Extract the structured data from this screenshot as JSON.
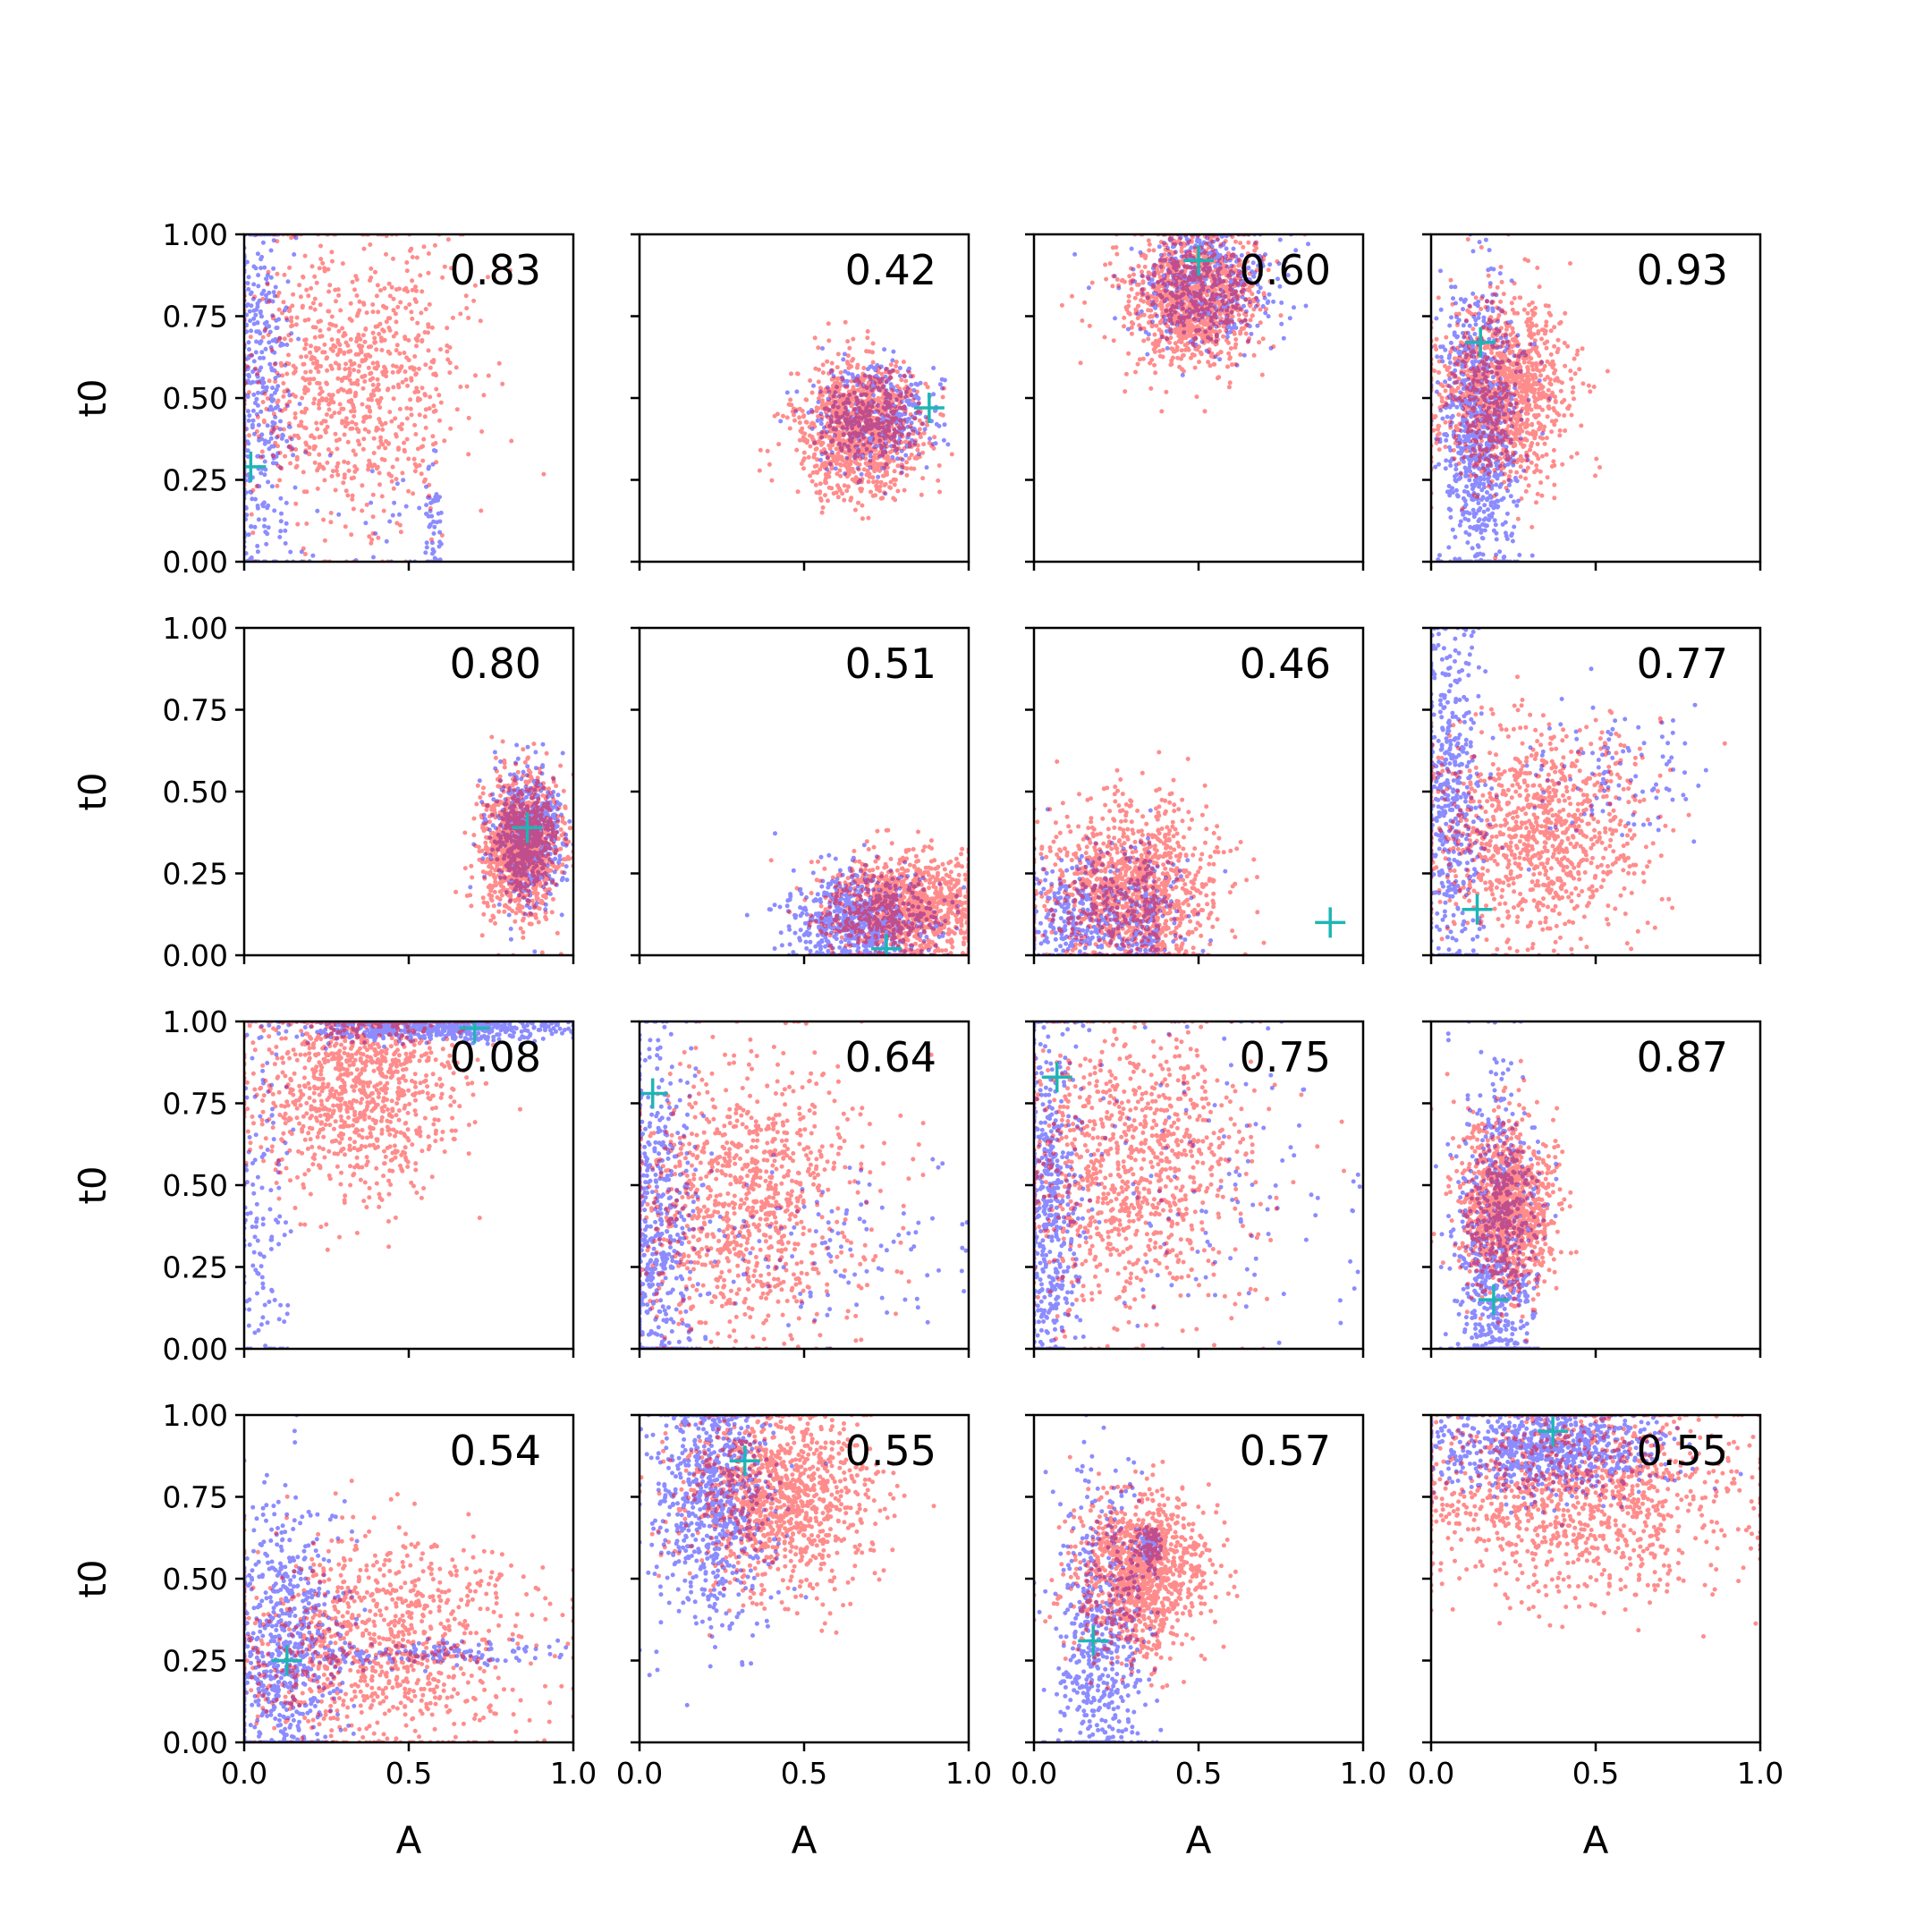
{
  "chart_data": {
    "type": "scatter",
    "layout": "4x4 grid of scatter panels with shared axes",
    "xlabel": "A",
    "ylabel": "t0",
    "xlim": [
      0,
      1
    ],
    "ylim": [
      0,
      1
    ],
    "x_ticks": [
      "0.0",
      "0.5",
      "1.0"
    ],
    "y_ticks": [
      "0.00",
      "0.25",
      "0.50",
      "0.75",
      "1.00"
    ],
    "series_colors": {
      "blue": "#0000ff",
      "red": "#ff0000",
      "marker": "#1fb5b5"
    },
    "panels": [
      {
        "value": "0.83",
        "marker": [
          0.02,
          0.29
        ],
        "blue": {
          "cx": 0.04,
          "cy": 0.5,
          "sx": 0.05,
          "sy": 0.32,
          "n": 500,
          "tail": [
            0.55,
            0.1,
            0.45,
            0.1,
            0.6
          ]
        },
        "red": {
          "cx": 0.32,
          "cy": 0.55,
          "sx": 0.17,
          "sy": 0.22,
          "n": 900
        }
      },
      {
        "value": "0.42",
        "marker": [
          0.88,
          0.47
        ],
        "blue": {
          "cx": 0.72,
          "cy": 0.44,
          "sx": 0.09,
          "sy": 0.08,
          "n": 500
        },
        "red": {
          "cx": 0.67,
          "cy": 0.41,
          "sx": 0.09,
          "sy": 0.1,
          "n": 1100
        }
      },
      {
        "value": "0.60",
        "marker": [
          0.5,
          0.92
        ],
        "blue": {
          "cx": 0.52,
          "cy": 0.84,
          "sx": 0.1,
          "sy": 0.09,
          "n": 600
        },
        "red": {
          "cx": 0.48,
          "cy": 0.8,
          "sx": 0.1,
          "sy": 0.1,
          "n": 1100
        }
      },
      {
        "value": "0.93",
        "marker": [
          0.15,
          0.67
        ],
        "blue": {
          "cx": 0.15,
          "cy": 0.4,
          "sx": 0.06,
          "sy": 0.23,
          "n": 900
        },
        "red": {
          "cx": 0.22,
          "cy": 0.52,
          "sx": 0.1,
          "sy": 0.14,
          "n": 1100
        }
      },
      {
        "value": "0.80",
        "marker": [
          0.86,
          0.39
        ],
        "blue": {
          "cx": 0.86,
          "cy": 0.36,
          "sx": 0.05,
          "sy": 0.1,
          "n": 700
        },
        "red": {
          "cx": 0.84,
          "cy": 0.34,
          "sx": 0.06,
          "sy": 0.1,
          "n": 1100
        }
      },
      {
        "value": "0.51",
        "marker": [
          0.75,
          0.02
        ],
        "blue": {
          "cx": 0.68,
          "cy": 0.1,
          "sx": 0.11,
          "sy": 0.08,
          "n": 800
        },
        "red": {
          "cx": 0.82,
          "cy": 0.15,
          "sx": 0.13,
          "sy": 0.08,
          "n": 1100
        }
      },
      {
        "value": "0.46",
        "marker": [
          0.9,
          0.1
        ],
        "blue": {
          "cx": 0.2,
          "cy": 0.12,
          "sx": 0.12,
          "sy": 0.1,
          "n": 600,
          "tail": [
            0.35,
            0.1,
            0.02,
            0.1,
            1.0
          ]
        },
        "red": {
          "cx": 0.3,
          "cy": 0.2,
          "sx": 0.13,
          "sy": 0.13,
          "n": 1100
        }
      },
      {
        "value": "0.77",
        "marker": [
          0.14,
          0.14
        ],
        "blue": {
          "cx": 0.06,
          "cy": 0.45,
          "sx": 0.05,
          "sy": 0.28,
          "n": 600,
          "tail": [
            0.55,
            0.55,
            0.15,
            0.1,
            1.0
          ]
        },
        "red": {
          "cx": 0.33,
          "cy": 0.38,
          "sx": 0.17,
          "sy": 0.16,
          "n": 1000
        }
      },
      {
        "value": "0.08",
        "marker": [
          0.7,
          0.98
        ],
        "blue": {
          "cx": 0.55,
          "cy": 0.98,
          "sx": 0.2,
          "sy": 0.02,
          "n": 700,
          "tail": [
            0.05,
            0.4,
            0.05,
            0.3,
            0.15
          ]
        },
        "red": {
          "cx": 0.35,
          "cy": 0.82,
          "sx": 0.16,
          "sy": 0.17,
          "n": 1100
        }
      },
      {
        "value": "0.64",
        "marker": [
          0.04,
          0.78
        ],
        "blue": {
          "cx": 0.05,
          "cy": 0.35,
          "sx": 0.06,
          "sy": 0.3,
          "n": 700,
          "tail": [
            0.55,
            0.3,
            0.25,
            0.15,
            1.0
          ]
        },
        "red": {
          "cx": 0.32,
          "cy": 0.45,
          "sx": 0.18,
          "sy": 0.2,
          "n": 1000
        }
      },
      {
        "value": "0.75",
        "marker": [
          0.07,
          0.83
        ],
        "blue": {
          "cx": 0.04,
          "cy": 0.45,
          "sx": 0.05,
          "sy": 0.3,
          "n": 700,
          "tail": [
            0.55,
            0.5,
            0.25,
            0.25,
            1.0
          ]
        },
        "red": {
          "cx": 0.3,
          "cy": 0.55,
          "sx": 0.18,
          "sy": 0.22,
          "n": 1000
        }
      },
      {
        "value": "0.87",
        "marker": [
          0.19,
          0.15
        ],
        "blue": {
          "cx": 0.2,
          "cy": 0.3,
          "sx": 0.06,
          "sy": 0.25,
          "n": 800
        },
        "red": {
          "cx": 0.23,
          "cy": 0.43,
          "sx": 0.07,
          "sy": 0.13,
          "n": 1100
        }
      },
      {
        "value": "0.54",
        "marker": [
          0.13,
          0.25
        ],
        "blue": {
          "cx": 0.12,
          "cy": 0.28,
          "sx": 0.09,
          "sy": 0.22,
          "n": 900,
          "tail": [
            0.55,
            0.27,
            0.2,
            0.02,
            1.0
          ]
        },
        "red": {
          "cx": 0.4,
          "cy": 0.3,
          "sx": 0.22,
          "sy": 0.17,
          "n": 1000
        }
      },
      {
        "value": "0.55",
        "marker": [
          0.32,
          0.86
        ],
        "blue": {
          "cx": 0.22,
          "cy": 0.76,
          "sx": 0.09,
          "sy": 0.2,
          "n": 800
        },
        "red": {
          "cx": 0.42,
          "cy": 0.75,
          "sx": 0.14,
          "sy": 0.14,
          "n": 1100
        }
      },
      {
        "value": "0.57",
        "marker": [
          0.18,
          0.31
        ],
        "blue": {
          "cx": 0.2,
          "cy": 0.3,
          "sx": 0.07,
          "sy": 0.25,
          "n": 700,
          "tail": [
            0.35,
            0.6,
            0.02,
            0.03,
            1.0
          ]
        },
        "red": {
          "cx": 0.32,
          "cy": 0.52,
          "sx": 0.1,
          "sy": 0.12,
          "n": 1100
        }
      },
      {
        "value": "0.55",
        "marker": [
          0.37,
          0.95
        ],
        "blue": {
          "cx": 0.35,
          "cy": 0.9,
          "sx": 0.18,
          "sy": 0.07,
          "n": 800
        },
        "red": {
          "cx": 0.45,
          "cy": 0.75,
          "sx": 0.25,
          "sy": 0.15,
          "n": 1100
        }
      }
    ]
  }
}
